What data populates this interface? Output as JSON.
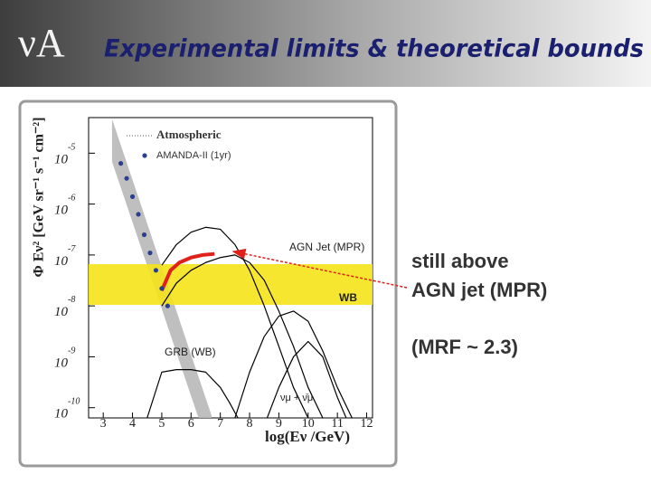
{
  "header": {
    "logo": "νA",
    "title": "Experimental limits & theoretical bounds"
  },
  "side_text": {
    "lines": [
      "still above",
      "AGN jet (MPR)"
    ],
    "note": "(MRF ~ 2.3)"
  },
  "chart_data": {
    "type": "line",
    "log_y": true,
    "y_label": "Φ Eν² [GeV sr⁻¹ s⁻¹ cm⁻²]",
    "x_label": "log(Eν /GeV)",
    "xlim": [
      2.5,
      12.2
    ],
    "ylim": [
      6.3e-11,
      5e-05
    ],
    "xticks": [
      3,
      4,
      5,
      6,
      7,
      8,
      9,
      10,
      11,
      12
    ],
    "yticks": [
      {
        "value": 1e-10,
        "label": "10",
        "exponent": "-10"
      },
      {
        "value": 1e-09,
        "label": "10",
        "exponent": "-9"
      },
      {
        "value": 1e-08,
        "label": "10",
        "exponent": "-8"
      },
      {
        "value": 1e-07,
        "label": "10",
        "exponent": "-7"
      },
      {
        "value": 1e-06,
        "label": "10",
        "exponent": "-6"
      },
      {
        "value": 1e-05,
        "label": "10",
        "exponent": "-5"
      }
    ],
    "bands": [
      {
        "name": "Atmospheric",
        "color": "#b8b8b8",
        "x": [
          3.3,
          4,
          5,
          6,
          6.7
        ],
        "lower": [
          6.8e-06,
          4.4e-07,
          8.7e-09,
          1.7e-10,
          1.1e-11
        ],
        "upper": [
          4.7e-05,
          3e-06,
          5.8e-08,
          1.1e-09,
          7.1e-11
        ]
      },
      {
        "name": "WB",
        "color": "#f5e31a",
        "x": [
          2.5,
          12.2
        ],
        "lower": [
          1.05e-08,
          1.05e-08
        ],
        "upper": [
          6.6e-08,
          6.6e-08
        ]
      }
    ],
    "points": {
      "name": "AMANDA-II (1yr)",
      "color": "#2a3f8f",
      "x": [
        3.6,
        3.8,
        4.0,
        4.2,
        4.4,
        4.6,
        4.8,
        5.0,
        5.2
      ],
      "values": [
        6.3e-06,
        3.2e-06,
        1.4e-06,
        6.3e-07,
        2.5e-07,
        1.1e-07,
        5e-08,
        2.2e-08,
        1e-08
      ]
    },
    "series": [
      {
        "name": "AGN Jet (MPR)",
        "color": "#000000",
        "x": [
          5,
          5.5,
          6,
          6.5,
          7,
          7.5,
          8,
          8.5,
          9,
          9.5,
          10
        ],
        "values": [
          6.3e-08,
          1.6e-07,
          2.8e-07,
          3.5e-07,
          3.2e-07,
          1.6e-07,
          5e-08,
          1e-08,
          1.6e-09,
          2.5e-10,
          6.3e-11
        ]
      },
      {
        "color": "#000000",
        "x": [
          5,
          5.5,
          6,
          6.5,
          7,
          7.5,
          8,
          8.5,
          9,
          9.5,
          10,
          10.5
        ],
        "values": [
          1e-08,
          2.8e-08,
          5e-08,
          7.1e-08,
          8.9e-08,
          1e-07,
          7.1e-08,
          3.2e-08,
          7.9e-09,
          1.6e-09,
          2.5e-10,
          6.3e-11
        ]
      },
      {
        "name": "GRB (WB)",
        "color": "#000000",
        "x": [
          4.5,
          5,
          5.5,
          6,
          6.5,
          7,
          7.3,
          7.6
        ],
        "values": [
          6.3e-11,
          5e-10,
          5.6e-10,
          5.6e-10,
          5e-10,
          2.5e-10,
          1.3e-10,
          6.3e-11
        ]
      },
      {
        "name": "νμ + ν̄μ",
        "color": "#000000",
        "x": [
          7.5,
          8,
          8.5,
          9,
          9.5,
          10,
          10.5,
          11,
          11.5
        ],
        "values": [
          6.3e-11,
          5e-10,
          2.5e-09,
          6.3e-09,
          7.9e-09,
          5e-09,
          1.3e-09,
          2.5e-10,
          6.3e-11
        ]
      },
      {
        "color": "#000000",
        "x": [
          8.6,
          9,
          9.5,
          10,
          10.5,
          11,
          11.3
        ],
        "values": [
          6.3e-11,
          2.5e-10,
          1e-09,
          2e-09,
          1e-09,
          1.6e-10,
          6.3e-11
        ]
      },
      {
        "color": "#e0201a",
        "x": [
          5,
          5.3,
          5.6,
          6,
          6.4,
          6.8
        ],
        "values": [
          2e-08,
          5e-08,
          7.1e-08,
          8.9e-08,
          1e-07,
          1.05e-07
        ]
      }
    ]
  }
}
